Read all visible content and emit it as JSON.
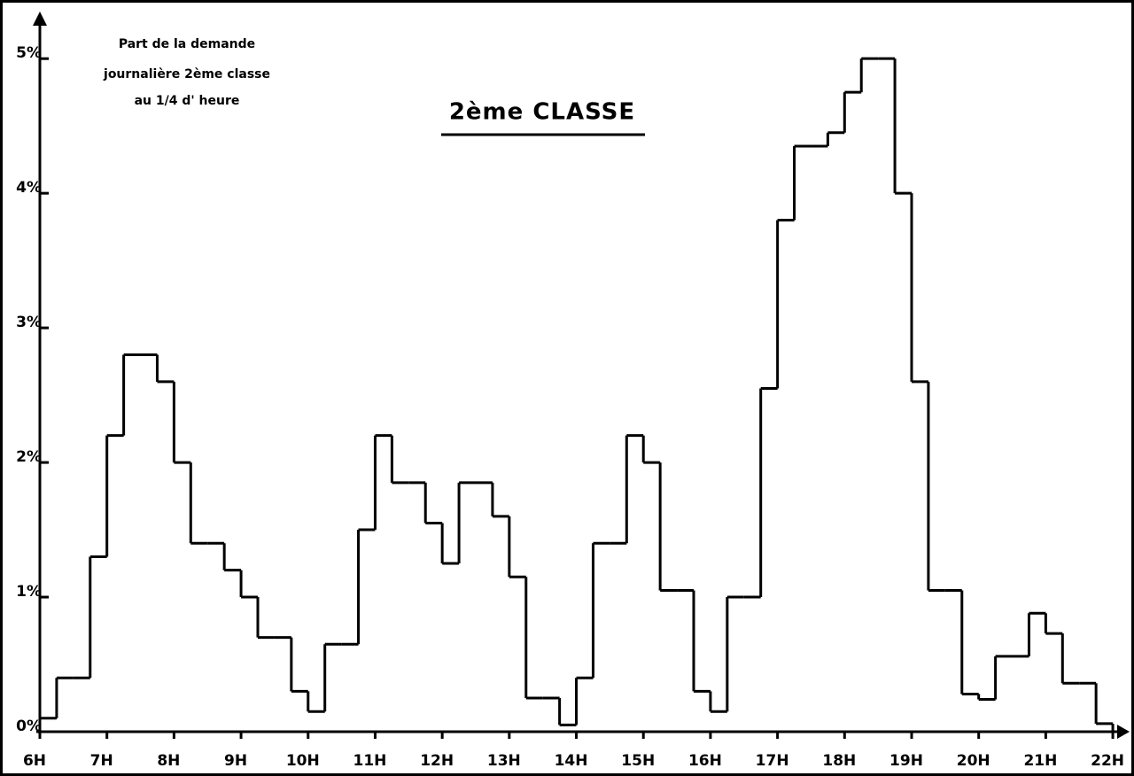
{
  "chart_data": {
    "type": "histogram",
    "title": "2ème CLASSE",
    "annotation": [
      "Part de la demande",
      "journalière 2ème classe",
      "au 1/4 d' heure"
    ],
    "bins": [
      6,
      6.25,
      6.5,
      6.75,
      7,
      7.25,
      7.5,
      7.75,
      8,
      8.25,
      8.5,
      8.75,
      9,
      9.25,
      9.5,
      9.75,
      10,
      10.25,
      10.5,
      10.75,
      11,
      11.25,
      11.5,
      11.75,
      12,
      12.25,
      12.5,
      12.75,
      13,
      13.25,
      13.5,
      13.75,
      14,
      14.25,
      14.5,
      14.75,
      15,
      15.25,
      15.5,
      15.75,
      16,
      16.25,
      16.5,
      16.75,
      17,
      17.25,
      17.5,
      17.75,
      18,
      18.25,
      18.5,
      18.75,
      19,
      19.25,
      19.5,
      19.75,
      20,
      20.25,
      20.5,
      20.75,
      21,
      21.25,
      21.5,
      21.75,
      22
    ],
    "counts": [
      0.1,
      0.4,
      0.4,
      1.3,
      2.2,
      2.8,
      2.8,
      2.6,
      2.0,
      1.4,
      1.4,
      1.2,
      1.0,
      0.7,
      0.7,
      0.3,
      0.15,
      0.65,
      0.65,
      1.5,
      2.2,
      1.85,
      1.85,
      1.55,
      1.25,
      1.85,
      1.85,
      1.6,
      1.15,
      0.25,
      0.25,
      0.05,
      0.4,
      1.4,
      1.4,
      2.2,
      2.0,
      1.05,
      1.05,
      0.3,
      0.15,
      1.0,
      1.0,
      2.55,
      3.8,
      4.35,
      4.35,
      4.45,
      4.75,
      5.0,
      5.0,
      4.0,
      2.6,
      1.05,
      1.05,
      0.28,
      0.24,
      0.56,
      0.56,
      0.88,
      0.73,
      0.36,
      0.36,
      0.06
    ],
    "color": "#000000",
    "xlim": [
      6,
      22.25
    ],
    "xticks": [
      {
        "value": 6,
        "label": "6H"
      },
      {
        "value": 7,
        "label": "7H"
      },
      {
        "value": 8,
        "label": "8H"
      },
      {
        "value": 9,
        "label": "9H"
      },
      {
        "value": 10,
        "label": "10H"
      },
      {
        "value": 11,
        "label": "11H"
      },
      {
        "value": 12,
        "label": "12H"
      },
      {
        "value": 13,
        "label": "13H"
      },
      {
        "value": 14,
        "label": "14H"
      },
      {
        "value": 15,
        "label": "15H"
      },
      {
        "value": 16,
        "label": "16H"
      },
      {
        "value": 17,
        "label": "17H"
      },
      {
        "value": 18,
        "label": "18H"
      },
      {
        "value": 19,
        "label": "19H"
      },
      {
        "value": 20,
        "label": "20H"
      },
      {
        "value": 21,
        "label": "21H"
      },
      {
        "value": 22,
        "label": "22H"
      }
    ],
    "ylim": [
      0,
      5.35
    ],
    "yticks": [
      {
        "value": 0,
        "label": "0%"
      },
      {
        "value": 1,
        "label": "1%"
      },
      {
        "value": 2,
        "label": "2%"
      },
      {
        "value": 3,
        "label": "3%"
      },
      {
        "value": 4,
        "label": "4%"
      },
      {
        "value": 5,
        "label": "5%"
      }
    ],
    "grid": false
  }
}
